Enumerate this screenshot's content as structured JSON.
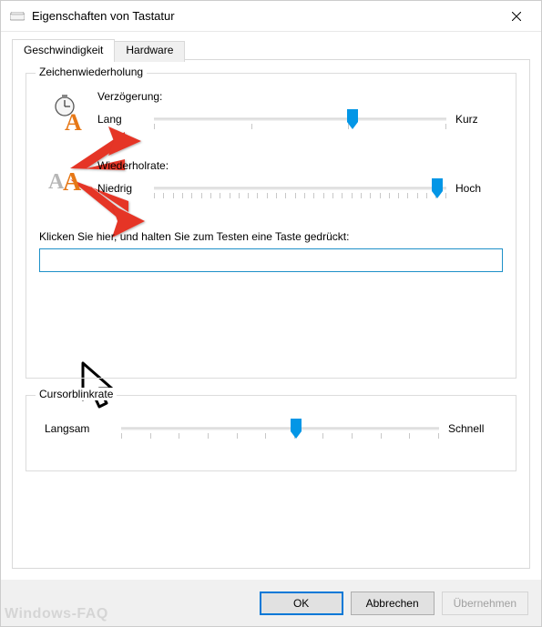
{
  "window": {
    "title": "Eigenschaften von Tastatur"
  },
  "tabs": {
    "speed": "Geschwindigkeit",
    "hardware": "Hardware"
  },
  "repeat_group": {
    "title": "Zeichenwiederholung",
    "delay_label": "Verzögerung:",
    "delay_low": "Lang",
    "delay_high": "Kurz",
    "rate_label": "Wiederholrate:",
    "rate_low": "Niedrig",
    "rate_high": "Hoch",
    "test_label": "Klicken Sie hier, und halten Sie zum Testen eine Taste gedrückt:",
    "test_value": ""
  },
  "blink_group": {
    "title": "Cursorblinkrate",
    "low": "Langsam",
    "high": "Schnell"
  },
  "buttons": {
    "ok": "OK",
    "cancel": "Abbrechen",
    "apply": "Übernehmen"
  },
  "sliders": {
    "delay": {
      "pos_pct": 68,
      "ticks": 4
    },
    "rate": {
      "pos_pct": 97,
      "ticks": 32
    },
    "blink": {
      "pos_pct": 55,
      "ticks": 12
    }
  },
  "colors": {
    "accent": "#0078d7",
    "thumb": "#0396e6",
    "arrow": "#e53426"
  },
  "watermark": "Windows-FAQ"
}
